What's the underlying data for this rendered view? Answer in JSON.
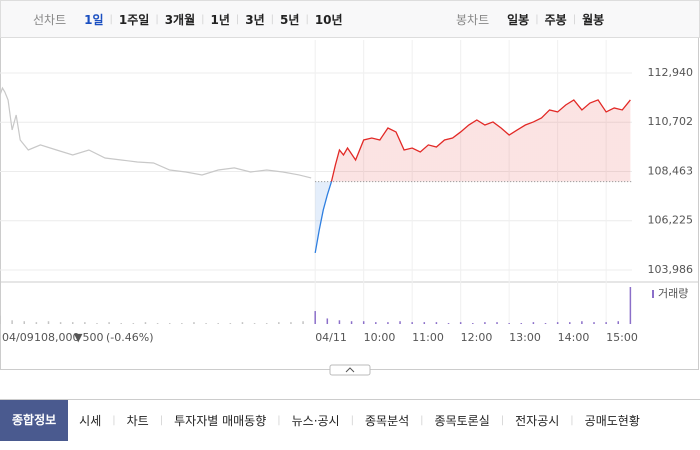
{
  "top_tabs": {
    "line_label": "선차트",
    "line_items": [
      "1일",
      "1주일",
      "3개월",
      "1년",
      "3년",
      "5년",
      "10년"
    ],
    "candle_label": "봉차트",
    "candle_items": [
      "일봉",
      "주봉",
      "월봉"
    ]
  },
  "chart_data": {
    "type": "line",
    "xlim": [
      0,
      782
    ],
    "xticks": [
      {
        "value": 390,
        "label": "04/11"
      },
      {
        "value": 450,
        "label": "10:00"
      },
      {
        "value": 510,
        "label": "11:00"
      },
      {
        "value": 570,
        "label": "12:00"
      },
      {
        "value": 630,
        "label": "13:00"
      },
      {
        "value": 690,
        "label": "14:00"
      },
      {
        "value": 750,
        "label": "15:00"
      }
    ],
    "ylim": [
      103530,
      114440
    ],
    "yticks": [
      {
        "value": 103986,
        "label": "103,986"
      },
      {
        "value": 106225,
        "label": "106,225"
      },
      {
        "value": 108463,
        "label": "108,463"
      },
      {
        "value": 110702,
        "label": "110,702"
      },
      {
        "value": 112940,
        "label": "112,940"
      }
    ],
    "baseline": 108000,
    "series": [
      {
        "color": "#c8c8c8",
        "x": [
          0,
          3,
          6,
          10,
          15,
          20,
          25,
          35,
          50,
          70,
          90,
          110,
          130,
          150,
          170,
          190,
          210,
          230,
          250,
          270,
          290,
          310,
          330,
          350,
          370,
          385
        ],
        "values": [
          111940,
          112258,
          112076,
          111713,
          110350,
          111030,
          109895,
          109440,
          109670,
          109440,
          109215,
          109440,
          109075,
          108985,
          108895,
          108850,
          108530,
          108440,
          108305,
          108530,
          108625,
          108440,
          108530,
          108440,
          108305,
          108170
        ]
      },
      {
        "up_color": "#e22926",
        "down_color": "#2f7fe0",
        "x": [
          390,
          395,
          400,
          405,
          410,
          415,
          420,
          425,
          430,
          440,
          450,
          460,
          470,
          480,
          490,
          500,
          510,
          520,
          530,
          540,
          550,
          560,
          570,
          580,
          590,
          600,
          610,
          620,
          630,
          640,
          650,
          660,
          670,
          680,
          690,
          700,
          710,
          720,
          730,
          740,
          750,
          760,
          770,
          780
        ],
        "values": [
          104760,
          105805,
          106715,
          107395,
          107985,
          108760,
          109440,
          109215,
          109530,
          108985,
          109895,
          109985,
          109895,
          110440,
          110260,
          109440,
          109530,
          109350,
          109670,
          109575,
          109895,
          109985,
          110260,
          110575,
          110805,
          110575,
          110715,
          110440,
          110120,
          110350,
          110575,
          110715,
          110895,
          111260,
          111170,
          111485,
          111715,
          111260,
          111575,
          111715,
          111170,
          111350,
          111260,
          111715
        ]
      }
    ],
    "volume_label": "거래량",
    "vlim": [
      0,
      40
    ],
    "volume": [
      {
        "color": "#c4c4c4",
        "x": [
          0,
          15,
          30,
          45,
          60,
          75,
          90,
          105,
          120,
          135,
          150,
          165,
          180,
          195,
          210,
          225,
          240,
          255,
          270,
          285,
          300,
          315,
          330,
          345,
          360,
          375
        ],
        "values": [
          9,
          4,
          3,
          2,
          3,
          2,
          2,
          2,
          1,
          2,
          1,
          1,
          2,
          1,
          1,
          1,
          2,
          1,
          1,
          1,
          2,
          1,
          1,
          2,
          2,
          3
        ]
      },
      {
        "color": "#8b6fc9",
        "x": [
          390,
          405,
          420,
          435,
          450,
          465,
          480,
          495,
          510,
          525,
          540,
          555,
          570,
          585,
          600,
          615,
          630,
          645,
          660,
          675,
          690,
          705,
          720,
          735,
          750,
          765,
          780
        ],
        "values": [
          14,
          6,
          4,
          3,
          3,
          2,
          2,
          3,
          2,
          2,
          2,
          1,
          2,
          1,
          2,
          2,
          1,
          1,
          2,
          1,
          2,
          2,
          3,
          2,
          2,
          3,
          40
        ]
      }
    ]
  },
  "status": {
    "date": "04/09",
    "price": "108,000",
    "change": "▼500",
    "pct": "(-0.46%)"
  },
  "bottom_tabs": [
    "종합정보",
    "시세",
    "차트",
    "투자자별 매매동향",
    "뉴스·공시",
    "종목분석",
    "종목토론실",
    "전자공시",
    "공매도현황"
  ]
}
